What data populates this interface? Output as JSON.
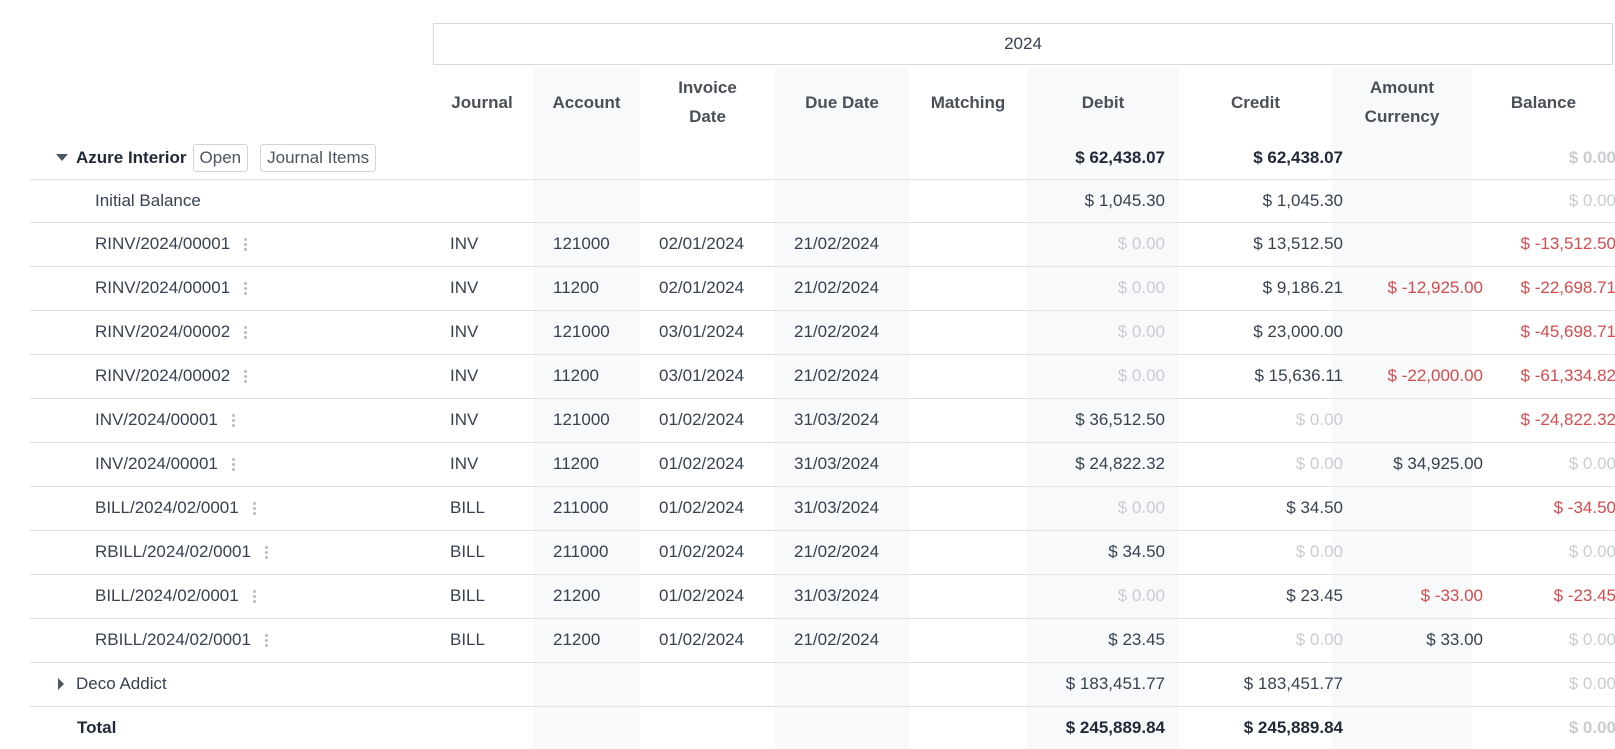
{
  "period_label": "2024",
  "columns": {
    "journal": "Journal",
    "account": "Account",
    "invoice_date_l1": "Invoice",
    "invoice_date_l2": "Date",
    "due_date": "Due Date",
    "matching": "Matching",
    "debit": "Debit",
    "credit": "Credit",
    "amount_currency_l1": "Amount",
    "amount_currency_l2": "Currency",
    "balance": "Balance"
  },
  "group_expanded": {
    "name": "Azure Interior",
    "open_label": "Open",
    "journal_items_label": "Journal Items",
    "debit": "$ 62,438.07",
    "credit": "$ 62,438.07",
    "balance": "$ 0.00"
  },
  "initial_balance": {
    "label": "Initial Balance",
    "debit": "$ 1,045.30",
    "credit": "$ 1,045.30",
    "balance": "$ 0.00"
  },
  "lines": [
    {
      "name": "RINV/2024/00001",
      "journal": "INV",
      "account": "121000",
      "invoice_date": "02/01/2024",
      "due_date": "21/02/2024",
      "matching": "",
      "debit": "$ 0.00",
      "credit": "$ 13,512.50",
      "amount_currency": "",
      "balance": "$ -13,512.50"
    },
    {
      "name": "RINV/2024/00001",
      "journal": "INV",
      "account": "11200",
      "invoice_date": "02/01/2024",
      "due_date": "21/02/2024",
      "matching": "",
      "debit": "$ 0.00",
      "credit": "$ 9,186.21",
      "amount_currency": "$ -12,925.00",
      "balance": "$ -22,698.71"
    },
    {
      "name": "RINV/2024/00002",
      "journal": "INV",
      "account": "121000",
      "invoice_date": "03/01/2024",
      "due_date": "21/02/2024",
      "matching": "",
      "debit": "$ 0.00",
      "credit": "$ 23,000.00",
      "amount_currency": "",
      "balance": "$ -45,698.71"
    },
    {
      "name": "RINV/2024/00002",
      "journal": "INV",
      "account": "11200",
      "invoice_date": "03/01/2024",
      "due_date": "21/02/2024",
      "matching": "",
      "debit": "$ 0.00",
      "credit": "$ 15,636.11",
      "amount_currency": "$ -22,000.00",
      "balance": "$ -61,334.82"
    },
    {
      "name": "INV/2024/00001",
      "journal": "INV",
      "account": "121000",
      "invoice_date": "01/02/2024",
      "due_date": "31/03/2024",
      "matching": "",
      "debit": "$ 36,512.50",
      "credit": "$ 0.00",
      "amount_currency": "",
      "balance": "$ -24,822.32"
    },
    {
      "name": "INV/2024/00001",
      "journal": "INV",
      "account": "11200",
      "invoice_date": "01/02/2024",
      "due_date": "31/03/2024",
      "matching": "",
      "debit": "$ 24,822.32",
      "credit": "$ 0.00",
      "amount_currency": "$ 34,925.00",
      "balance": "$ 0.00"
    },
    {
      "name": "BILL/2024/02/0001",
      "journal": "BILL",
      "account": "211000",
      "invoice_date": "01/02/2024",
      "due_date": "31/03/2024",
      "matching": "",
      "debit": "$ 0.00",
      "credit": "$ 34.50",
      "amount_currency": "",
      "balance": "$ -34.50"
    },
    {
      "name": "RBILL/2024/02/0001",
      "journal": "BILL",
      "account": "211000",
      "invoice_date": "01/02/2024",
      "due_date": "21/02/2024",
      "matching": "",
      "debit": "$ 34.50",
      "credit": "$ 0.00",
      "amount_currency": "",
      "balance": "$ 0.00"
    },
    {
      "name": "BILL/2024/02/0001",
      "journal": "BILL",
      "account": "21200",
      "invoice_date": "01/02/2024",
      "due_date": "31/03/2024",
      "matching": "",
      "debit": "$ 0.00",
      "credit": "$ 23.45",
      "amount_currency": "$ -33.00",
      "balance": "$ -23.45"
    },
    {
      "name": "RBILL/2024/02/0001",
      "journal": "BILL",
      "account": "21200",
      "invoice_date": "01/02/2024",
      "due_date": "21/02/2024",
      "matching": "",
      "debit": "$ 23.45",
      "credit": "$ 0.00",
      "amount_currency": "$ 33.00",
      "balance": "$ 0.00"
    }
  ],
  "group_collapsed": {
    "name": "Deco Addict",
    "debit": "$ 183,451.77",
    "credit": "$ 183,451.77",
    "balance": "$ 0.00"
  },
  "total": {
    "label": "Total",
    "debit": "$ 245,889.84",
    "credit": "$ 245,889.84",
    "balance": "$ 0.00"
  },
  "colors": {
    "negative": "#d44c4c",
    "zero": "#c9ccd1",
    "stripe": "#f8f9fb"
  }
}
